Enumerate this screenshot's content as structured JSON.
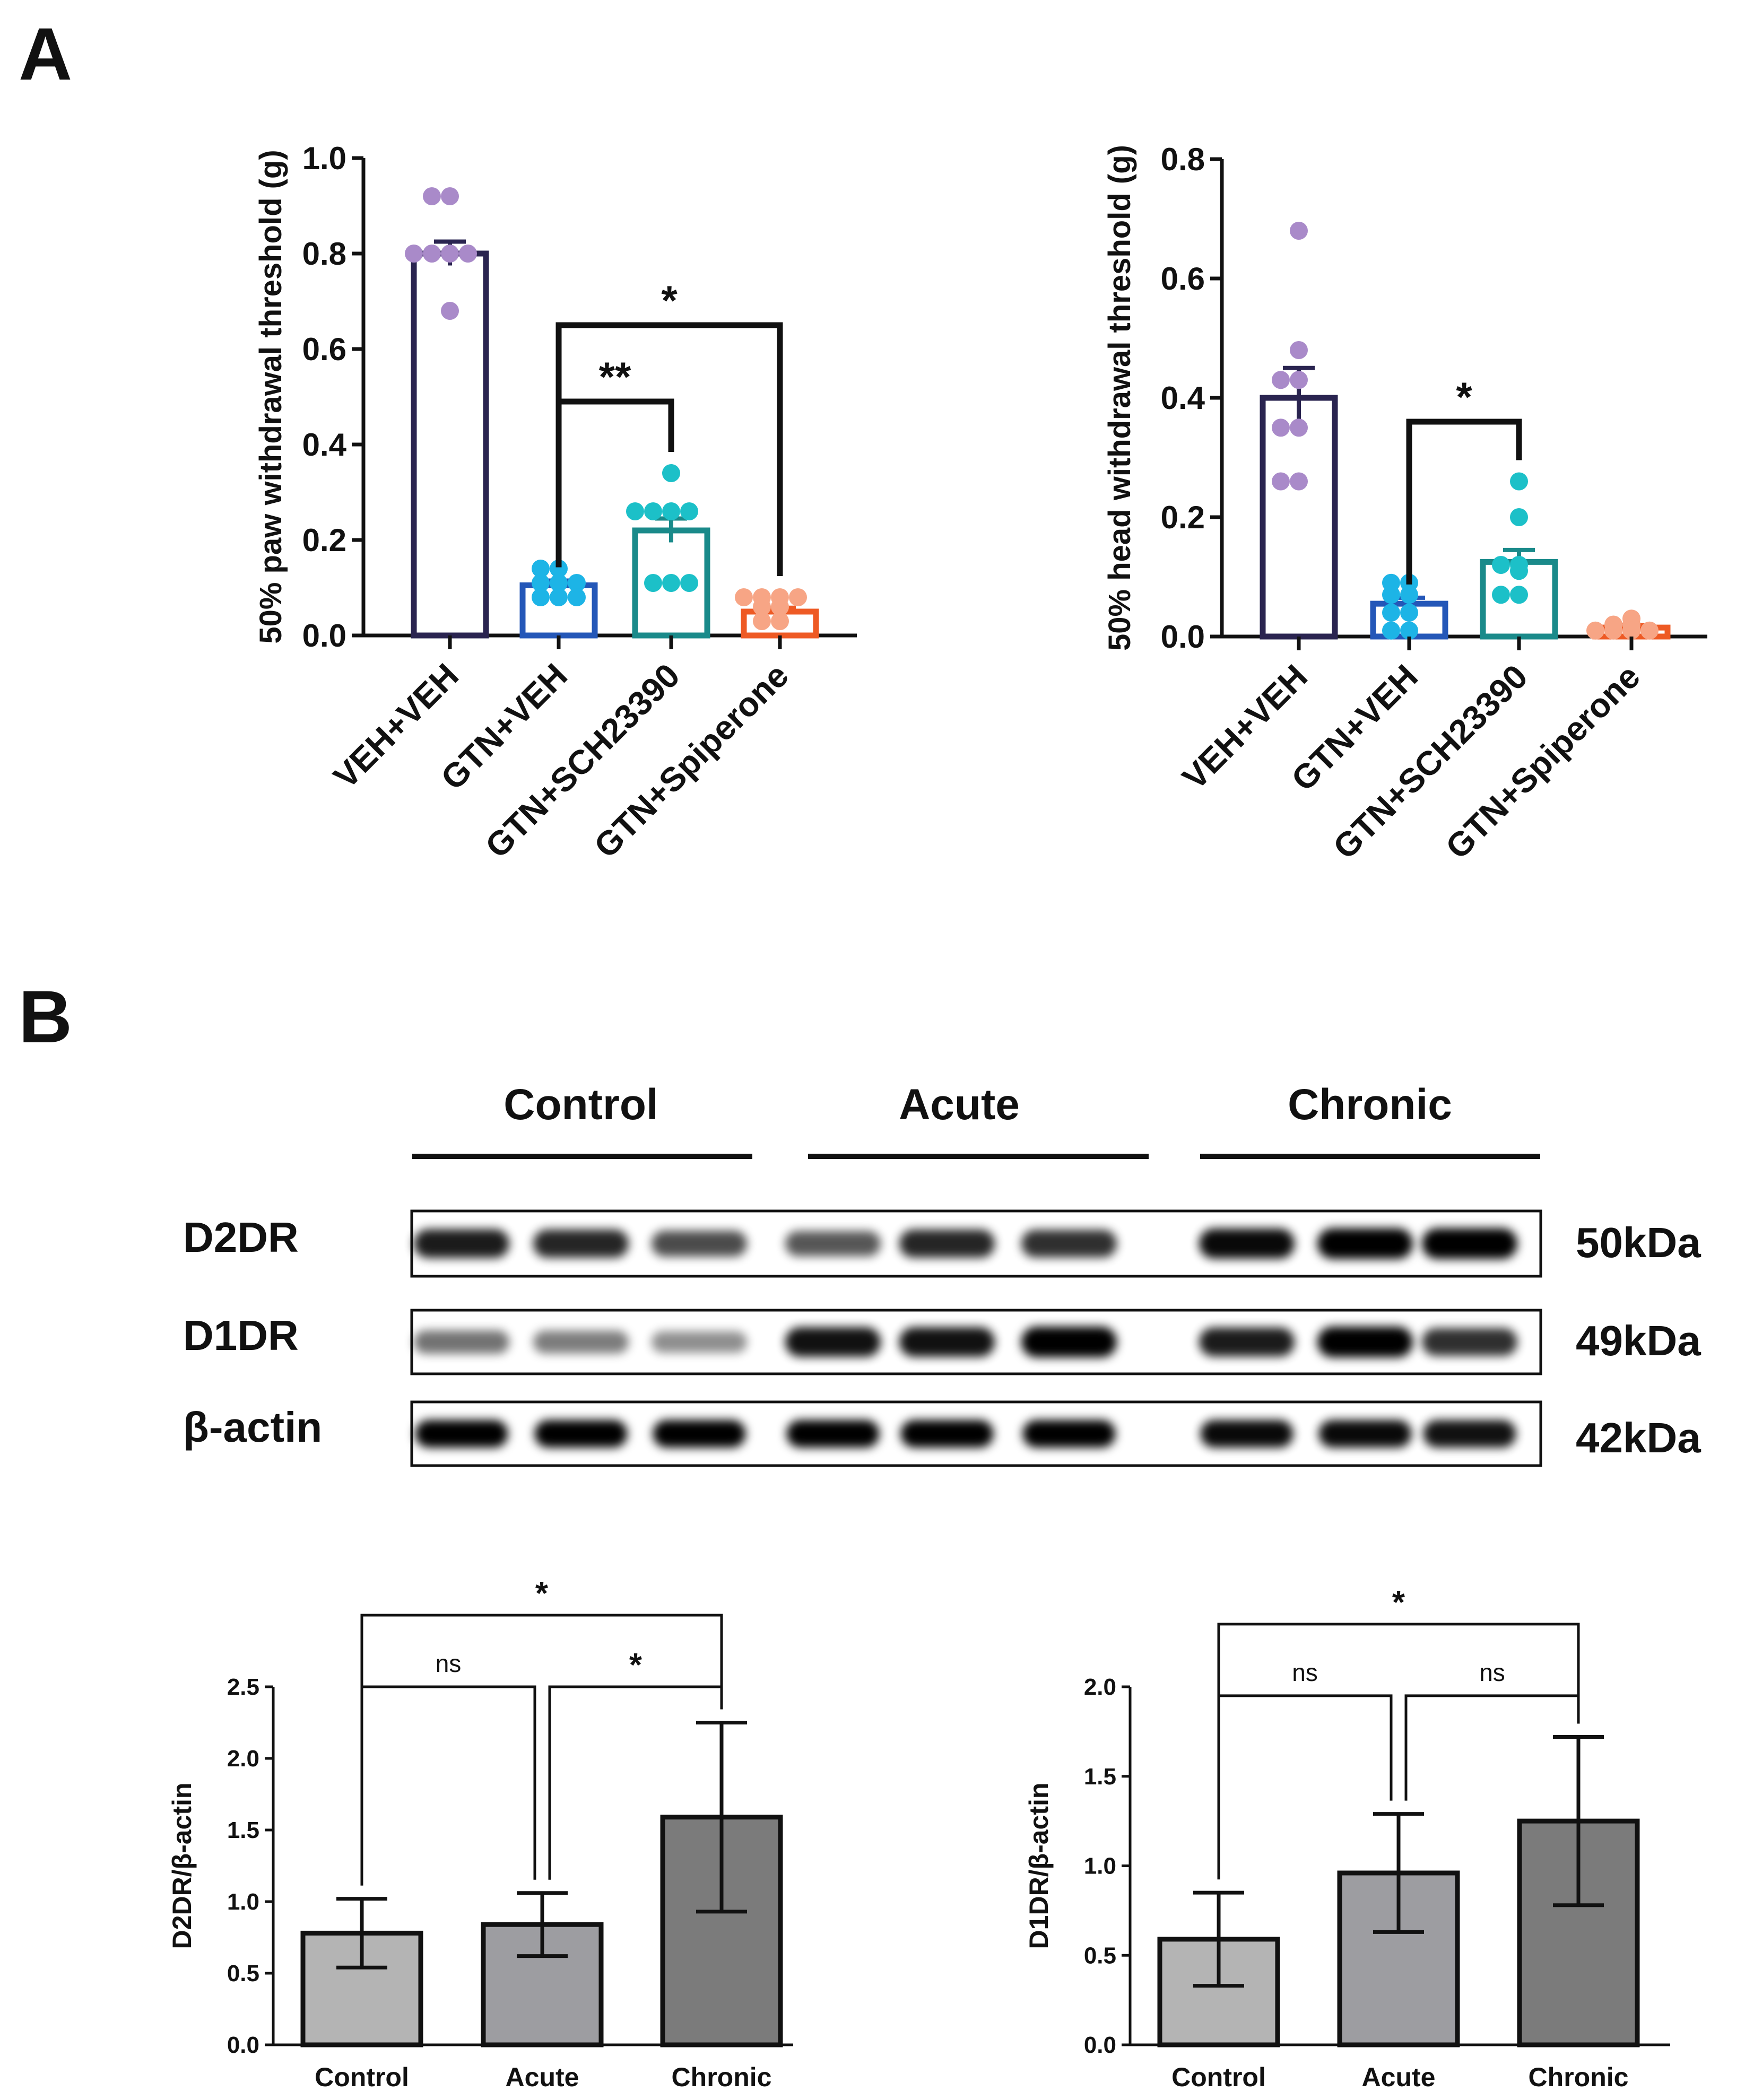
{
  "panel_labels": {
    "a": "A",
    "b": "B"
  },
  "colors": {
    "axis": "#111111",
    "veh_veh": "#2a2450",
    "veh_veh_dot": "#a98ac9",
    "gtn_veh": "#2457b8",
    "gtn_veh_dot": "#1db4e6",
    "gtn_sch": "#1a8a8a",
    "gtn_sch_dot": "#1cc0c8",
    "gtn_spi": "#ee5a24",
    "gtn_spi_dot": "#f7a585",
    "wb_control": "#b4b4b4",
    "wb_acute": "#9d9da1",
    "wb_chronic": "#7b7b7b"
  },
  "blot": {
    "groups": [
      "Control",
      "Acute",
      "Chronic"
    ],
    "rows": [
      {
        "label": "D2DR",
        "kda": "50kDa",
        "intensity": [
          0.85,
          0.8,
          0.6,
          0.55,
          0.8,
          0.75,
          0.95,
          1.0,
          1.0
        ]
      },
      {
        "label": "D1DR",
        "kda": "49kDa",
        "intensity": [
          0.4,
          0.35,
          0.25,
          0.9,
          0.9,
          1.0,
          0.85,
          1.0,
          0.75
        ]
      },
      {
        "label": "β-actin",
        "kda": "42kDa",
        "intensity": [
          1.0,
          1.0,
          1.0,
          1.0,
          1.0,
          1.0,
          0.95,
          0.95,
          0.9
        ]
      }
    ]
  },
  "chart_data": [
    {
      "id": "paw",
      "type": "bar",
      "ylabel": "50% paw withdrawal threshold (g)",
      "ylim": [
        0,
        1.0
      ],
      "yticks": [
        "0.0",
        "0.2",
        "0.4",
        "0.6",
        "0.8",
        "1.0"
      ],
      "ytick_values": [
        0,
        0.2,
        0.4,
        0.6,
        0.8,
        1.0
      ],
      "categories": [
        "VEH+VEH",
        "GTN+VEH",
        "GTN+SCH23390",
        "GTN+Spiperone"
      ],
      "values": [
        0.8,
        0.105,
        0.22,
        0.05
      ],
      "sem": [
        0.025,
        0.01,
        0.025,
        0.008
      ],
      "points": [
        [
          0.92,
          0.92,
          0.8,
          0.8,
          0.8,
          0.8,
          0.68
        ],
        [
          0.14,
          0.14,
          0.11,
          0.11,
          0.11,
          0.08,
          0.08,
          0.08
        ],
        [
          0.34,
          0.26,
          0.26,
          0.26,
          0.26,
          0.11,
          0.11,
          0.11
        ],
        [
          0.08,
          0.08,
          0.08,
          0.08,
          0.06,
          0.06,
          0.03,
          0.03
        ]
      ],
      "comparisons": [
        {
          "from": 1,
          "to": 3,
          "y": 0.65,
          "label": "*"
        },
        {
          "from": 1,
          "to": 2,
          "y": 0.49,
          "label": "**"
        }
      ]
    },
    {
      "id": "head",
      "type": "bar",
      "ylabel": "50% head withdrawal threshold (g)",
      "ylim": [
        0,
        0.8
      ],
      "yticks": [
        "0.0",
        "0.2",
        "0.4",
        "0.6",
        "0.8"
      ],
      "ytick_values": [
        0,
        0.2,
        0.4,
        0.6,
        0.8
      ],
      "categories": [
        "VEH+VEH",
        "GTN+VEH",
        "GTN+SCH23390",
        "GTN+Spiperone"
      ],
      "values": [
        0.4,
        0.055,
        0.125,
        0.015
      ],
      "sem": [
        0.05,
        0.01,
        0.02,
        0.004
      ],
      "points": [
        [
          0.68,
          0.48,
          0.43,
          0.43,
          0.35,
          0.35,
          0.26,
          0.26
        ],
        [
          0.09,
          0.09,
          0.07,
          0.07,
          0.04,
          0.04,
          0.01,
          0.01
        ],
        [
          0.26,
          0.2,
          0.12,
          0.12,
          0.11,
          0.07,
          0.07
        ],
        [
          0.03,
          0.02,
          0.02,
          0.01,
          0.01,
          0.01,
          0.01
        ]
      ],
      "comparisons": [
        {
          "from": 1,
          "to": 2,
          "y": 0.36,
          "label": "*"
        }
      ]
    },
    {
      "id": "d2dr",
      "type": "bar",
      "ylabel": "D2DR/β-actin",
      "ylim": [
        0,
        2.5
      ],
      "yticks": [
        "0.0",
        "0.5",
        "1.0",
        "1.5",
        "2.0",
        "2.5"
      ],
      "ytick_values": [
        0,
        0.5,
        1.0,
        1.5,
        2.0,
        2.5
      ],
      "categories": [
        "Control",
        "Acute",
        "Chronic"
      ],
      "values": [
        0.78,
        0.84,
        1.59
      ],
      "err": [
        0.24,
        0.22,
        0.66
      ],
      "comparisons": [
        {
          "from": 0,
          "to": 1,
          "y": 2.5,
          "label": "ns"
        },
        {
          "from": 1,
          "to": 2,
          "y": 2.5,
          "label": "*"
        },
        {
          "from": 0,
          "to": 2,
          "y": 3.0,
          "label": "*"
        }
      ]
    },
    {
      "id": "d1dr",
      "type": "bar",
      "ylabel": "D1DR/β-actin",
      "ylim": [
        0,
        2.0
      ],
      "yticks": [
        "0.0",
        "0.5",
        "1.0",
        "1.5",
        "2.0"
      ],
      "ytick_values": [
        0,
        0.5,
        1.0,
        1.5,
        2.0
      ],
      "categories": [
        "Control",
        "Acute",
        "Chronic"
      ],
      "values": [
        0.59,
        0.96,
        1.25
      ],
      "err": [
        0.26,
        0.33,
        0.47
      ],
      "comparisons": [
        {
          "from": 0,
          "to": 1,
          "y": 1.95,
          "label": "ns"
        },
        {
          "from": 1,
          "to": 2,
          "y": 1.95,
          "label": "ns"
        },
        {
          "from": 0,
          "to": 2,
          "y": 2.35,
          "label": "*"
        }
      ]
    }
  ]
}
